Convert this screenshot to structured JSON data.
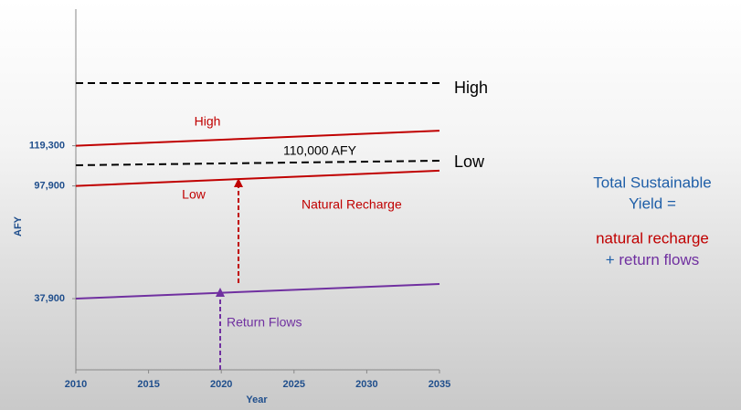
{
  "chart_data": {
    "type": "line",
    "x_label": "Year",
    "y_label": "AFY",
    "x": [
      2010,
      2035
    ],
    "xlim": [
      2010,
      2035
    ],
    "xticks": [
      2010,
      2015,
      2020,
      2025,
      2030,
      2035
    ],
    "ylim": [
      0,
      192000
    ],
    "yticks": [
      {
        "value": 37900,
        "label": "37,900"
      },
      {
        "value": 97900,
        "label": "97,900"
      },
      {
        "value": 119300,
        "label": "119,300"
      }
    ],
    "series": [
      {
        "name": "High",
        "color": "#c00000",
        "style": "solid",
        "values": [
          119300,
          127300
        ]
      },
      {
        "name": "Low",
        "color": "#c00000",
        "style": "solid",
        "values": [
          97900,
          106000
        ]
      },
      {
        "name": "Return Flows",
        "color": "#7030a0",
        "style": "solid",
        "values": [
          37900,
          45700
        ]
      },
      {
        "name": "High",
        "color": "#000000",
        "style": "dashed",
        "values": [
          152600,
          152600
        ]
      },
      {
        "name": "Low",
        "color": "#000000",
        "style": "dashed",
        "values": [
          108900,
          111300
        ]
      }
    ],
    "annotations": [
      "Natural Recharge",
      "110,000 AFY"
    ],
    "side_text": {
      "line1": "Total Sustainable",
      "line2": "Yield =",
      "line3": "natural recharge",
      "line4_plus": "+",
      "line4_rest": "return flows"
    }
  }
}
